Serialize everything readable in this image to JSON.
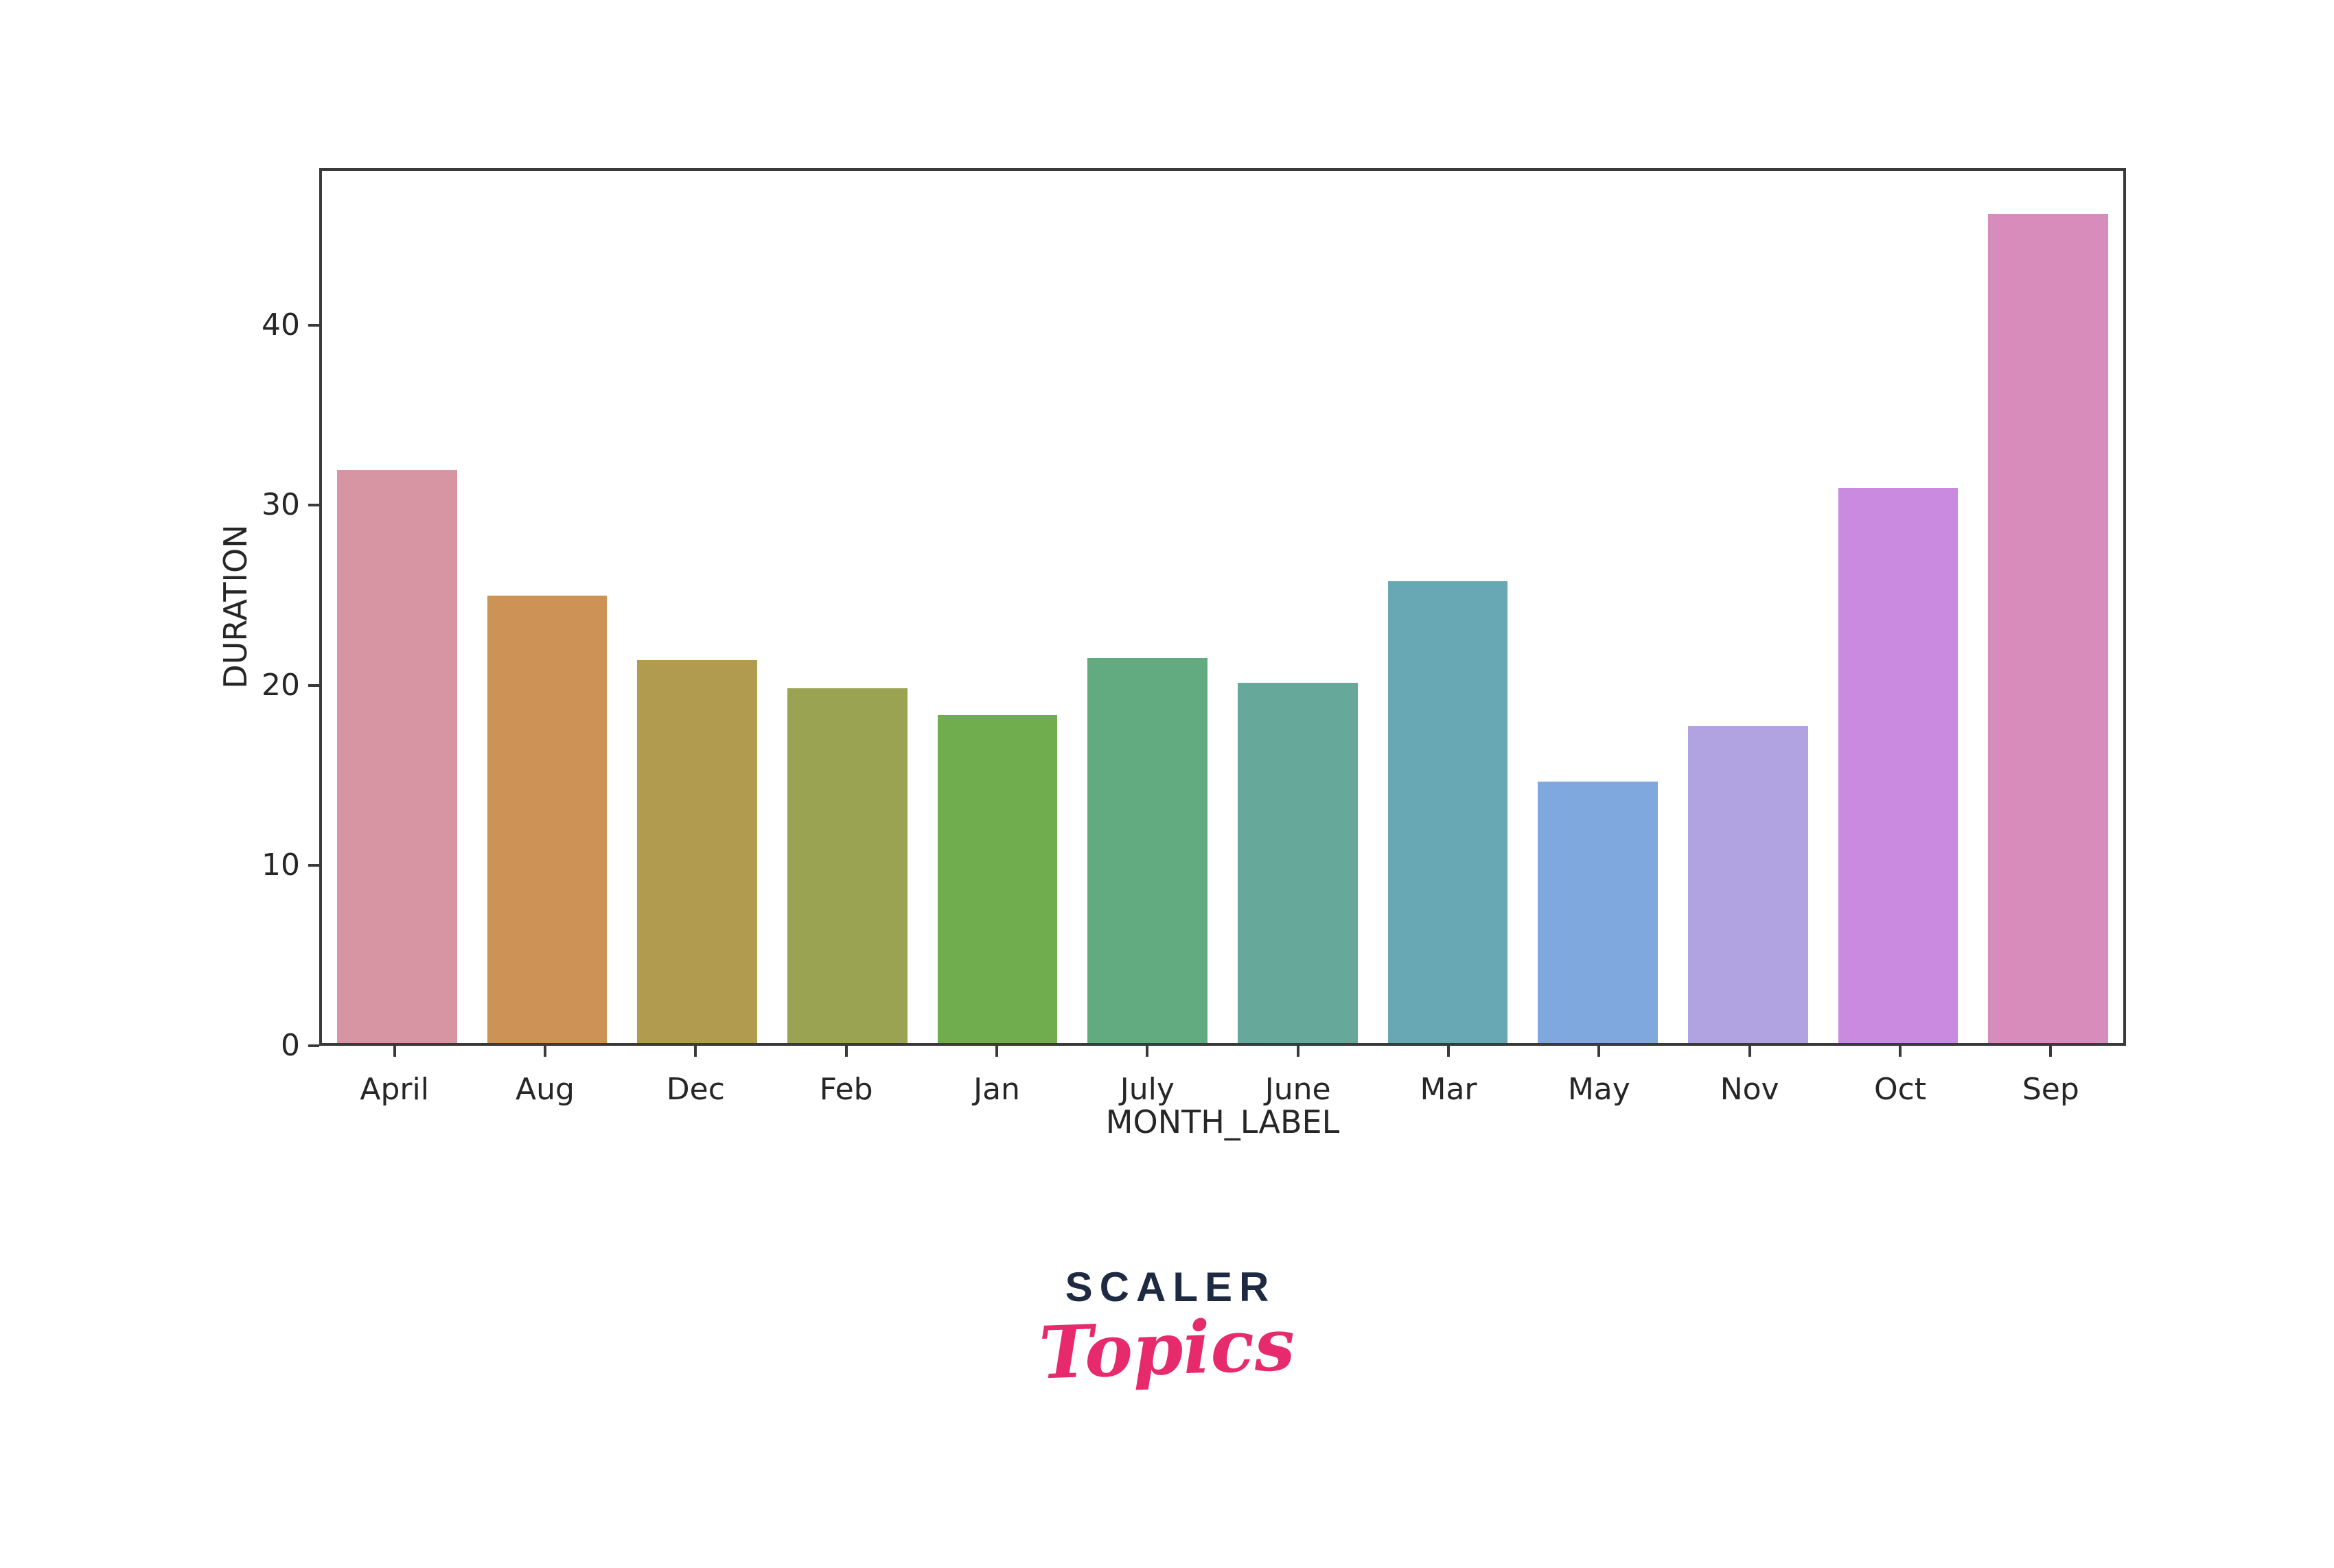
{
  "chart_data": {
    "type": "bar",
    "title": "",
    "xlabel": "MONTH_LABEL",
    "ylabel": "DURATION",
    "categories": [
      "April",
      "Aug",
      "Dec",
      "Feb",
      "Jan",
      "July",
      "June",
      "Mar",
      "May",
      "Nov",
      "Oct",
      "Sep"
    ],
    "values": [
      32.0,
      25.0,
      21.4,
      19.8,
      18.3,
      21.5,
      20.1,
      25.8,
      14.6,
      17.7,
      31.0,
      46.3
    ],
    "bar_colors": [
      "#d795a4",
      "#cd9356",
      "#b09b4f",
      "#99a351",
      "#6fad4f",
      "#62ab80",
      "#66a99a",
      "#68a8b4",
      "#7ea8de",
      "#b1a3e2",
      "#ca8ae0",
      "#d78cbb"
    ],
    "y_ticks": [
      0,
      10,
      20,
      30,
      40
    ],
    "y_tick_labels": [
      "0",
      "10",
      "20",
      "30",
      "40"
    ],
    "ylim": [
      0,
      48.7
    ],
    "grid": false,
    "legend": null,
    "bar_width_fraction": 0.8,
    "axis_color": "#3a3a3a",
    "text_color": "#262626"
  },
  "branding": {
    "wordmark": "SCALER",
    "sub_wordmark": "Topics",
    "wordmark_color": "#1d2a42",
    "sub_wordmark_color": "#e72a6b"
  }
}
